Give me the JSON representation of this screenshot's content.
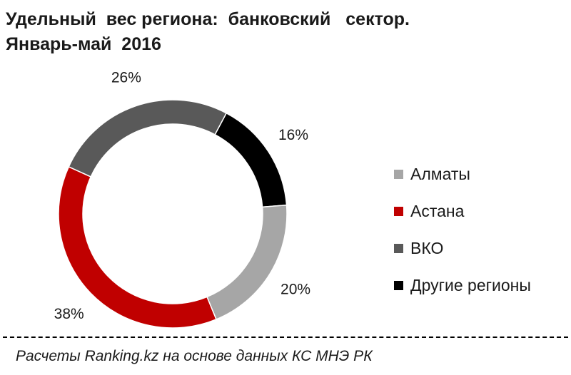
{
  "chart_data": {
    "type": "pie",
    "variant": "donut",
    "title_line1": "Удельный  вес региона:  банковский   сектор.",
    "title_line2": "Январь-май  2016",
    "categories": [
      "Алматы",
      "Астана",
      "ВКО",
      "Другие регионы"
    ],
    "values": [
      20,
      38,
      26,
      16
    ],
    "value_labels": [
      "20%",
      "38%",
      "26%",
      "16%"
    ],
    "colors": [
      "#a6a6a6",
      "#c00000",
      "#595959",
      "#000000"
    ],
    "legend_position": "right"
  },
  "footer": {
    "source": "Расчеты Ranking.kz на основе данных  КС МНЭ РК"
  }
}
